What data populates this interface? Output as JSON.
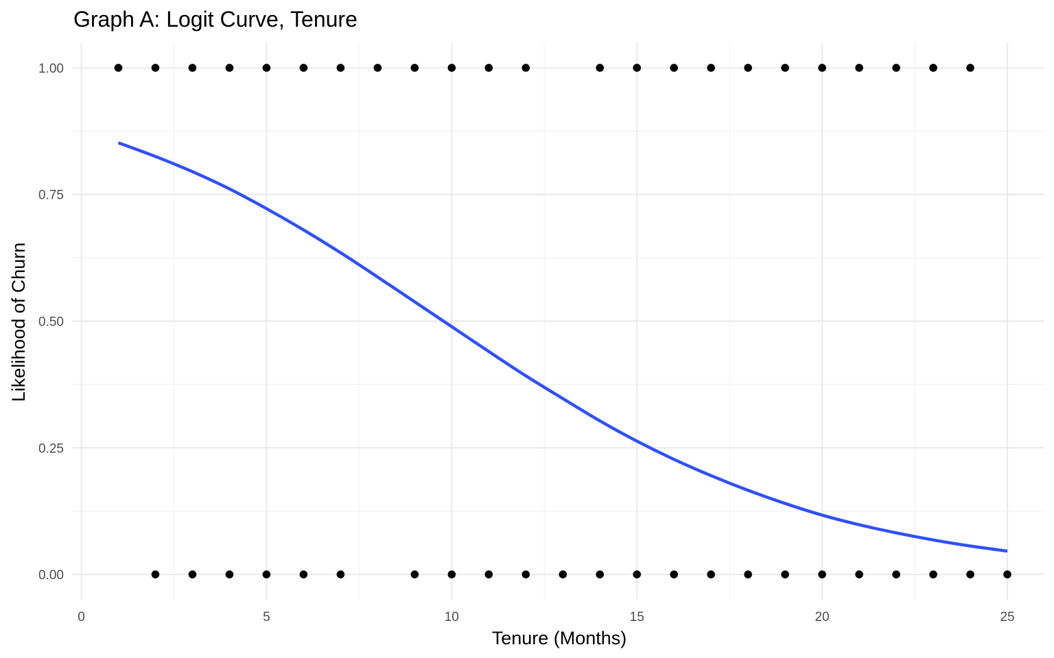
{
  "chart_data": {
    "type": "scatter",
    "title": "Graph A: Logit Curve, Tenure",
    "xlabel": "Tenure (Months)",
    "ylabel": "Likelihood of Churn",
    "xlim": [
      -0.25,
      26.0
    ],
    "ylim": [
      -0.05,
      1.05
    ],
    "x_ticks": [
      0,
      5,
      10,
      15,
      20,
      25
    ],
    "x_tick_labels": [
      "0",
      "5",
      "10",
      "15",
      "20",
      "25"
    ],
    "y_ticks": [
      0,
      0.25,
      0.5,
      0.75,
      1.0
    ],
    "y_tick_labels": [
      "0.00",
      "0.25",
      "0.50",
      "0.75",
      "1.00"
    ],
    "grid": true,
    "legend": "none",
    "series": [
      {
        "type": "scatter",
        "color": "#000000",
        "points": [
          {
            "x": 1,
            "y": 1
          },
          {
            "x": 2,
            "y": 1
          },
          {
            "x": 3,
            "y": 1
          },
          {
            "x": 4,
            "y": 1
          },
          {
            "x": 5,
            "y": 1
          },
          {
            "x": 6,
            "y": 1
          },
          {
            "x": 7,
            "y": 1
          },
          {
            "x": 8,
            "y": 1
          },
          {
            "x": 9,
            "y": 1
          },
          {
            "x": 10,
            "y": 1
          },
          {
            "x": 11,
            "y": 1
          },
          {
            "x": 12,
            "y": 1
          },
          {
            "x": 14,
            "y": 1
          },
          {
            "x": 15,
            "y": 1
          },
          {
            "x": 16,
            "y": 1
          },
          {
            "x": 17,
            "y": 1
          },
          {
            "x": 18,
            "y": 1
          },
          {
            "x": 19,
            "y": 1
          },
          {
            "x": 20,
            "y": 1
          },
          {
            "x": 21,
            "y": 1
          },
          {
            "x": 22,
            "y": 1
          },
          {
            "x": 23,
            "y": 1
          },
          {
            "x": 24,
            "y": 1
          },
          {
            "x": 2,
            "y": 0
          },
          {
            "x": 3,
            "y": 0
          },
          {
            "x": 4,
            "y": 0
          },
          {
            "x": 5,
            "y": 0
          },
          {
            "x": 6,
            "y": 0
          },
          {
            "x": 7,
            "y": 0
          },
          {
            "x": 9,
            "y": 0
          },
          {
            "x": 10,
            "y": 0
          },
          {
            "x": 11,
            "y": 0
          },
          {
            "x": 12,
            "y": 0
          },
          {
            "x": 13,
            "y": 0
          },
          {
            "x": 14,
            "y": 0
          },
          {
            "x": 15,
            "y": 0
          },
          {
            "x": 16,
            "y": 0
          },
          {
            "x": 17,
            "y": 0
          },
          {
            "x": 18,
            "y": 0
          },
          {
            "x": 19,
            "y": 0
          },
          {
            "x": 20,
            "y": 0
          },
          {
            "x": 21,
            "y": 0
          },
          {
            "x": 22,
            "y": 0
          },
          {
            "x": 23,
            "y": 0
          },
          {
            "x": 24,
            "y": 0
          },
          {
            "x": 25,
            "y": 0
          }
        ]
      },
      {
        "type": "line",
        "color": "#3050ff",
        "points": [
          {
            "x": 1,
            "y": 0.852
          },
          {
            "x": 2,
            "y": 0.825
          },
          {
            "x": 3,
            "y": 0.795
          },
          {
            "x": 4,
            "y": 0.761
          },
          {
            "x": 5,
            "y": 0.722
          },
          {
            "x": 6,
            "y": 0.68
          },
          {
            "x": 7,
            "y": 0.635
          },
          {
            "x": 8,
            "y": 0.587
          },
          {
            "x": 9,
            "y": 0.538
          },
          {
            "x": 10,
            "y": 0.489
          },
          {
            "x": 11,
            "y": 0.44
          },
          {
            "x": 12,
            "y": 0.392
          },
          {
            "x": 13,
            "y": 0.347
          },
          {
            "x": 14,
            "y": 0.303
          },
          {
            "x": 15,
            "y": 0.263
          },
          {
            "x": 16,
            "y": 0.227
          },
          {
            "x": 17,
            "y": 0.195
          },
          {
            "x": 18,
            "y": 0.166
          },
          {
            "x": 19,
            "y": 0.14
          },
          {
            "x": 20,
            "y": 0.117
          },
          {
            "x": 21,
            "y": 0.098
          },
          {
            "x": 22,
            "y": 0.082
          },
          {
            "x": 23,
            "y": 0.068
          },
          {
            "x": 24,
            "y": 0.056
          },
          {
            "x": 25,
            "y": 0.046
          }
        ]
      }
    ]
  }
}
